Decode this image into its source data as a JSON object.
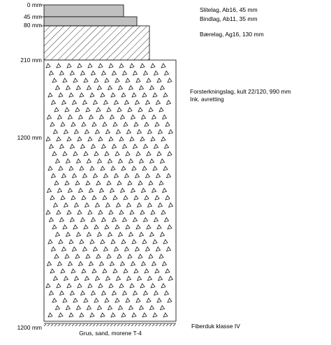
{
  "depth_labels": {
    "d0": "0 mm",
    "d45": "45 mm",
    "d80": "80 mm",
    "d210": "210 mm",
    "d1200_mid": "1200 mm",
    "d1200_bottom": "1200 mm"
  },
  "layers": {
    "slitelag": "Slitelag, Ab16, 45 mm",
    "bindlag": "Bindlag, Ab11, 35 mm",
    "baerelag": "Bærelag, Ag16, 130 mm",
    "forsterkningslag_line1": "Forsterkningslag, kult 22/120, 990 mm",
    "forsterkningslag_line2": "Ink. avretting",
    "fiberduk": "Fiberduk klasse IV",
    "grunn": "Grus, sand, morene T-4"
  },
  "colors": {
    "asphalt_fill": "#c0c0c0",
    "stroke": "#000000",
    "background": "#ffffff"
  }
}
